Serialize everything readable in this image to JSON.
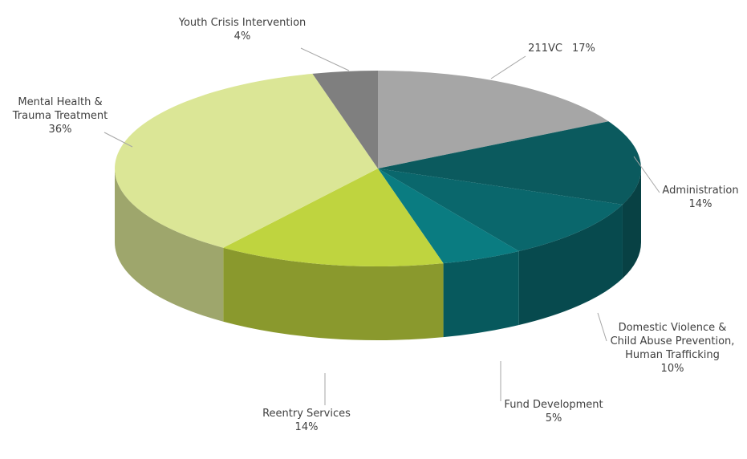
{
  "chart_data": {
    "type": "pie",
    "categories": [
      "211VC",
      "Administration",
      "Domestic Violence & Child Abuse Prevention, Human Trafficking",
      "Fund Development",
      "Reentry Services",
      "Mental Health & Trauma Treatment",
      "Youth Crisis Intervention"
    ],
    "values": [
      17,
      14,
      10,
      5,
      14,
      36,
      4
    ],
    "value_labels": [
      "17%",
      "14%",
      "10%",
      "5%",
      "14%",
      "36%",
      "4%"
    ],
    "colors": [
      "#a6a6a6",
      "#0b5a5e",
      "#0a676c",
      "#0a7c81",
      "#bfd43f",
      "#dbe696",
      "#7f7f7f"
    ]
  }
}
